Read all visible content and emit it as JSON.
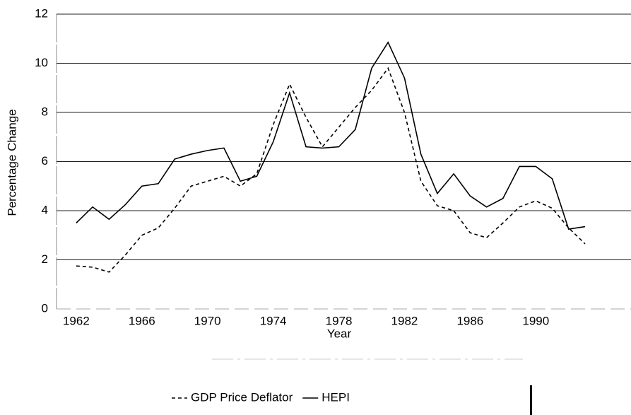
{
  "chart_data": {
    "type": "line",
    "x": [
      1962,
      1963,
      1964,
      1965,
      1966,
      1967,
      1968,
      1969,
      1970,
      1971,
      1972,
      1973,
      1974,
      1975,
      1976,
      1977,
      1978,
      1979,
      1980,
      1981,
      1982,
      1983,
      1984,
      1985,
      1986,
      1987,
      1988,
      1989,
      1990,
      1991,
      1992,
      1993
    ],
    "series": [
      {
        "name": "GDP Price Deflator",
        "color": "#000000",
        "style": "dashed",
        "values": [
          1.75,
          1.7,
          1.5,
          2.2,
          3.0,
          3.3,
          4.1,
          5.0,
          5.2,
          5.4,
          5.0,
          5.5,
          7.5,
          9.15,
          7.8,
          6.6,
          7.4,
          8.2,
          8.9,
          9.8,
          8.0,
          5.2,
          4.2,
          4.0,
          3.1,
          2.9,
          3.5,
          4.15,
          4.4,
          4.1,
          3.3,
          2.65
        ]
      },
      {
        "name": "HEPI",
        "color": "#000000",
        "style": "solid",
        "values": [
          3.5,
          4.15,
          3.65,
          4.25,
          5.0,
          5.1,
          6.1,
          6.3,
          6.45,
          6.55,
          5.2,
          5.4,
          6.8,
          8.8,
          6.6,
          6.55,
          6.6,
          7.3,
          9.8,
          10.85,
          9.4,
          6.3,
          4.7,
          5.5,
          4.6,
          4.15,
          4.5,
          5.8,
          5.8,
          5.3,
          3.25,
          3.35
        ]
      }
    ],
    "x_label": "Year",
    "y_label": "Percentage Change",
    "xlim": [
      1960.8,
      1995.8
    ],
    "xticks": [
      1962,
      1966,
      1970,
      1974,
      1978,
      1982,
      1986,
      1990
    ],
    "ylim": [
      0,
      12
    ],
    "yticks": [
      0,
      2,
      4,
      6,
      8,
      10,
      12
    ],
    "grid": true,
    "legend": "bottom"
  }
}
